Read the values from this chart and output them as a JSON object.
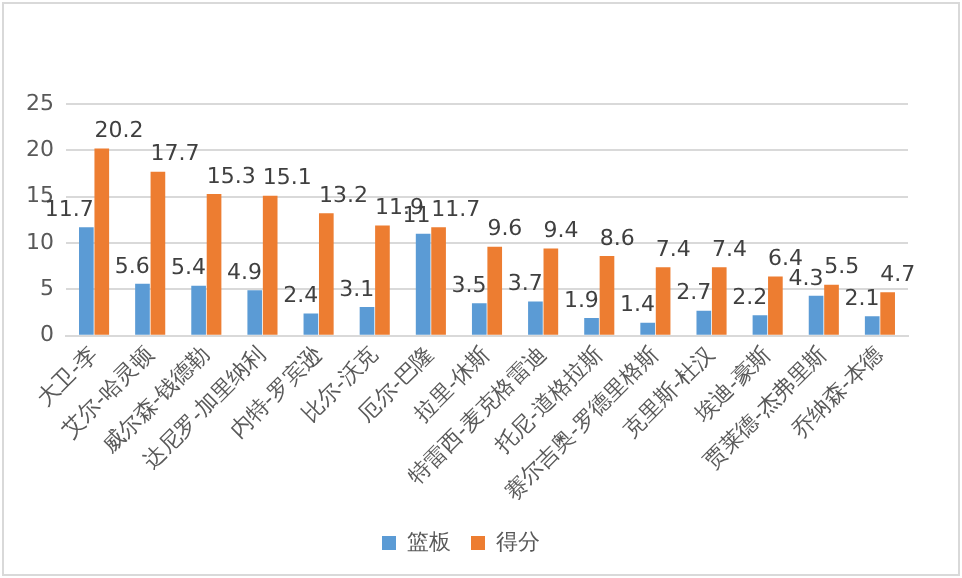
{
  "chart_data": {
    "type": "bar",
    "categories": [
      "大卫-李",
      "艾尔-哈灵顿",
      "威尔森-钱德勒",
      "达尼罗-加里纳利",
      "内特-罗宾逊",
      "比尔-沃克",
      "厄尔-巴隆",
      "拉里-休斯",
      "特雷西-麦克格雷迪",
      "托尼-道格拉斯",
      "赛尔吉奥-罗德里格斯",
      "克里斯-杜汉",
      "埃迪-豪斯",
      "贾莱德-杰弗里斯",
      "乔纳森-本德"
    ],
    "series": [
      {
        "name": "篮板",
        "color": "#5b9bd5",
        "values": [
          11.7,
          5.6,
          5.4,
          4.9,
          2.4,
          3.1,
          11,
          3.5,
          3.7,
          1.9,
          1.4,
          2.7,
          2.2,
          4.3,
          2.1
        ]
      },
      {
        "name": "得分",
        "color": "#ed7d31",
        "values": [
          20.2,
          17.7,
          15.3,
          15.1,
          13.2,
          11.9,
          11.7,
          9.6,
          9.4,
          8.6,
          7.4,
          7.4,
          6.4,
          5.5,
          4.7
        ]
      }
    ],
    "ylim": [
      0,
      25
    ],
    "yticks": [
      0,
      5,
      10,
      15,
      20,
      25
    ],
    "grid": "y",
    "legend": "bottom",
    "data_labels": true
  }
}
